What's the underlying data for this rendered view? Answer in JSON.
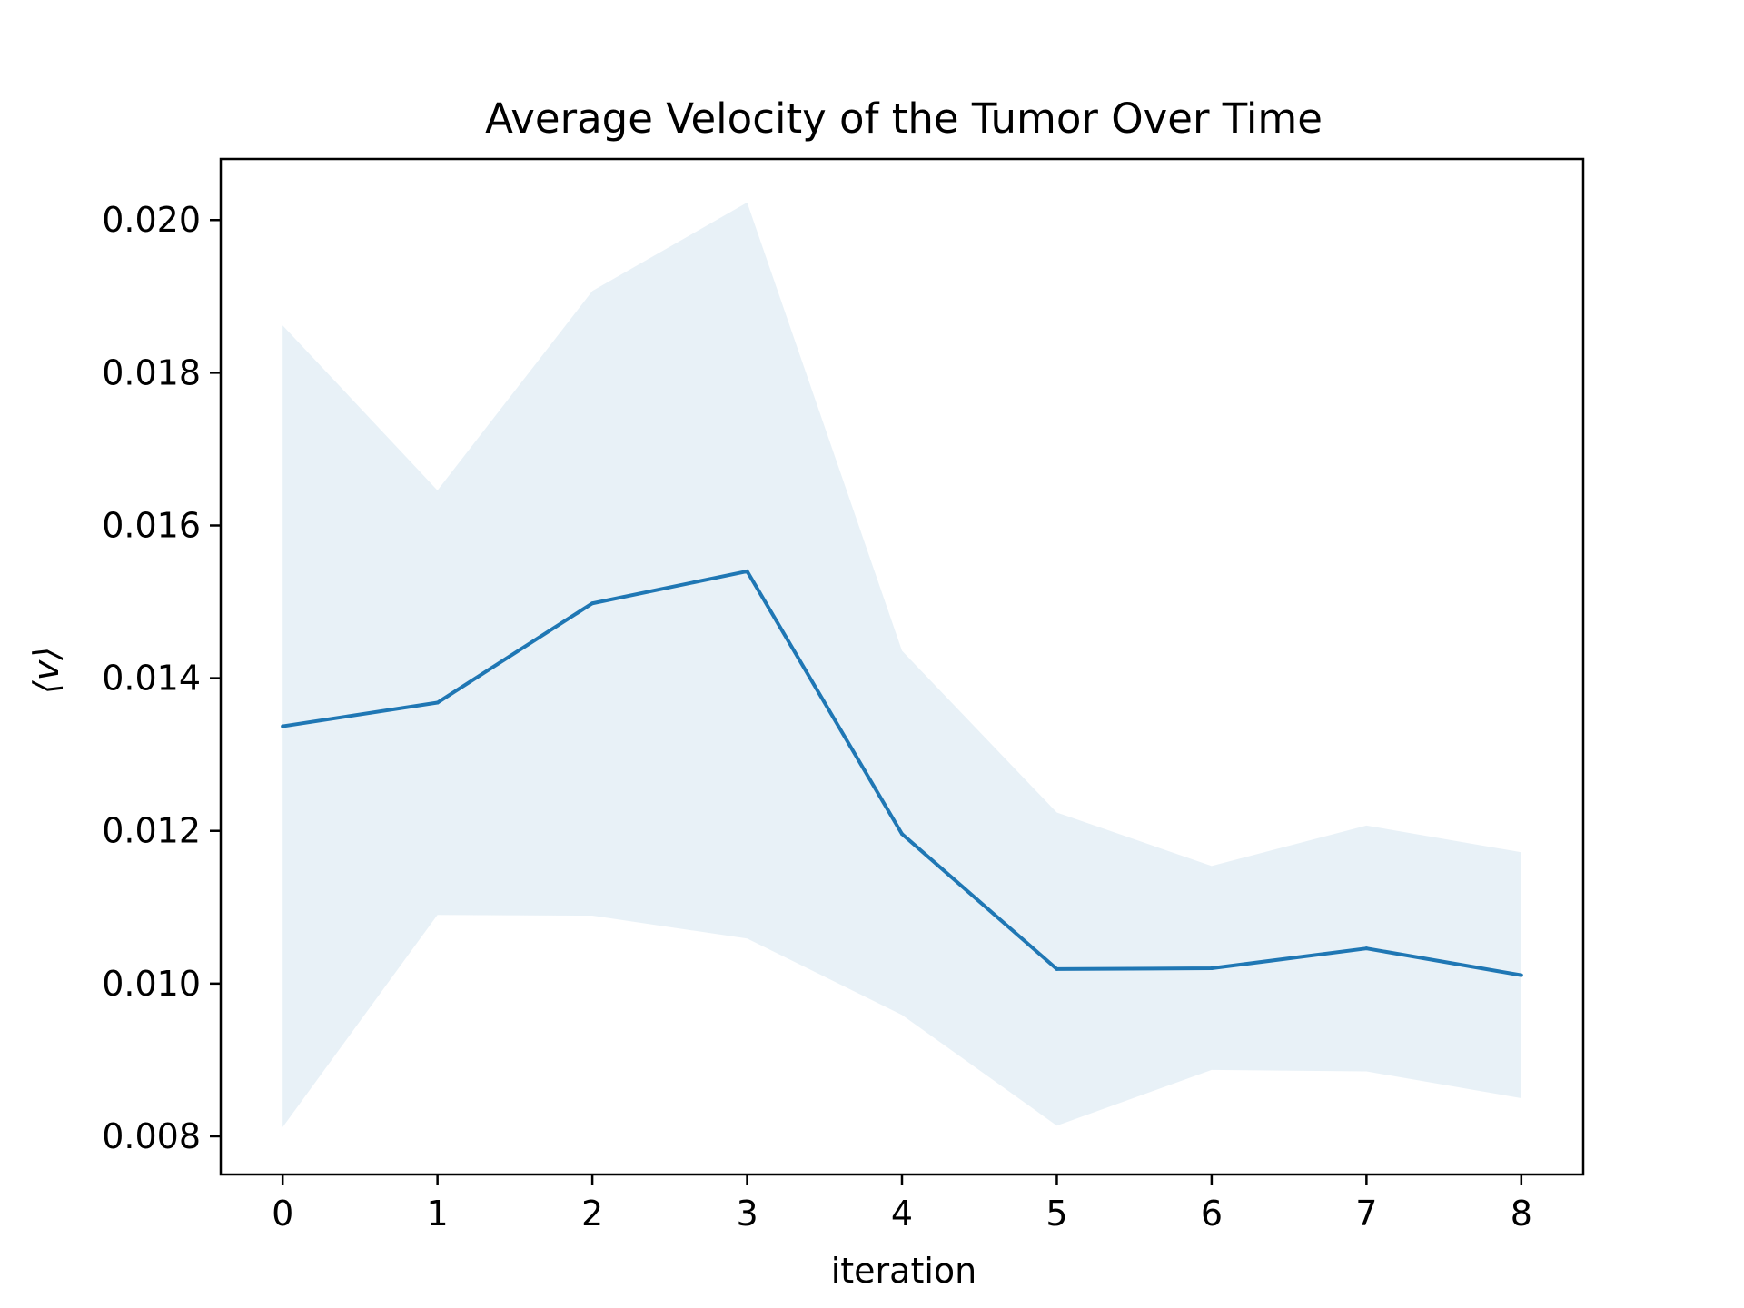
{
  "chart_data": {
    "type": "line",
    "title": "Average Velocity of the Tumor Over Time",
    "xlabel": "iteration",
    "ylabel": "⟨v⟩",
    "x": [
      0,
      1,
      2,
      3,
      4,
      5,
      6,
      7,
      8
    ],
    "xlim": [
      -0.4,
      8.4
    ],
    "ylim": [
      0.0075,
      0.0208
    ],
    "xticks": [
      "0",
      "1",
      "2",
      "3",
      "4",
      "5",
      "6",
      "7",
      "8"
    ],
    "yticks": [
      "0.008",
      "0.010",
      "0.012",
      "0.014",
      "0.016",
      "0.018",
      "0.020"
    ],
    "grid": false,
    "series": [
      {
        "values": [
          0.01337,
          0.01368,
          0.01498,
          0.0154,
          0.01196,
          0.01019,
          0.0102,
          0.01046,
          0.01011
        ],
        "color": "#1f77b4"
      }
    ],
    "band": {
      "upper": [
        0.01862,
        0.01646,
        0.01907,
        0.02023,
        0.01436,
        0.01224,
        0.01154,
        0.01207,
        0.01172
      ],
      "lower": [
        0.00812,
        0.0109,
        0.01089,
        0.01059,
        0.00959,
        0.00814,
        0.00887,
        0.00885,
        0.0085
      ],
      "color": "#1f77b4",
      "opacity": 0.1
    }
  }
}
